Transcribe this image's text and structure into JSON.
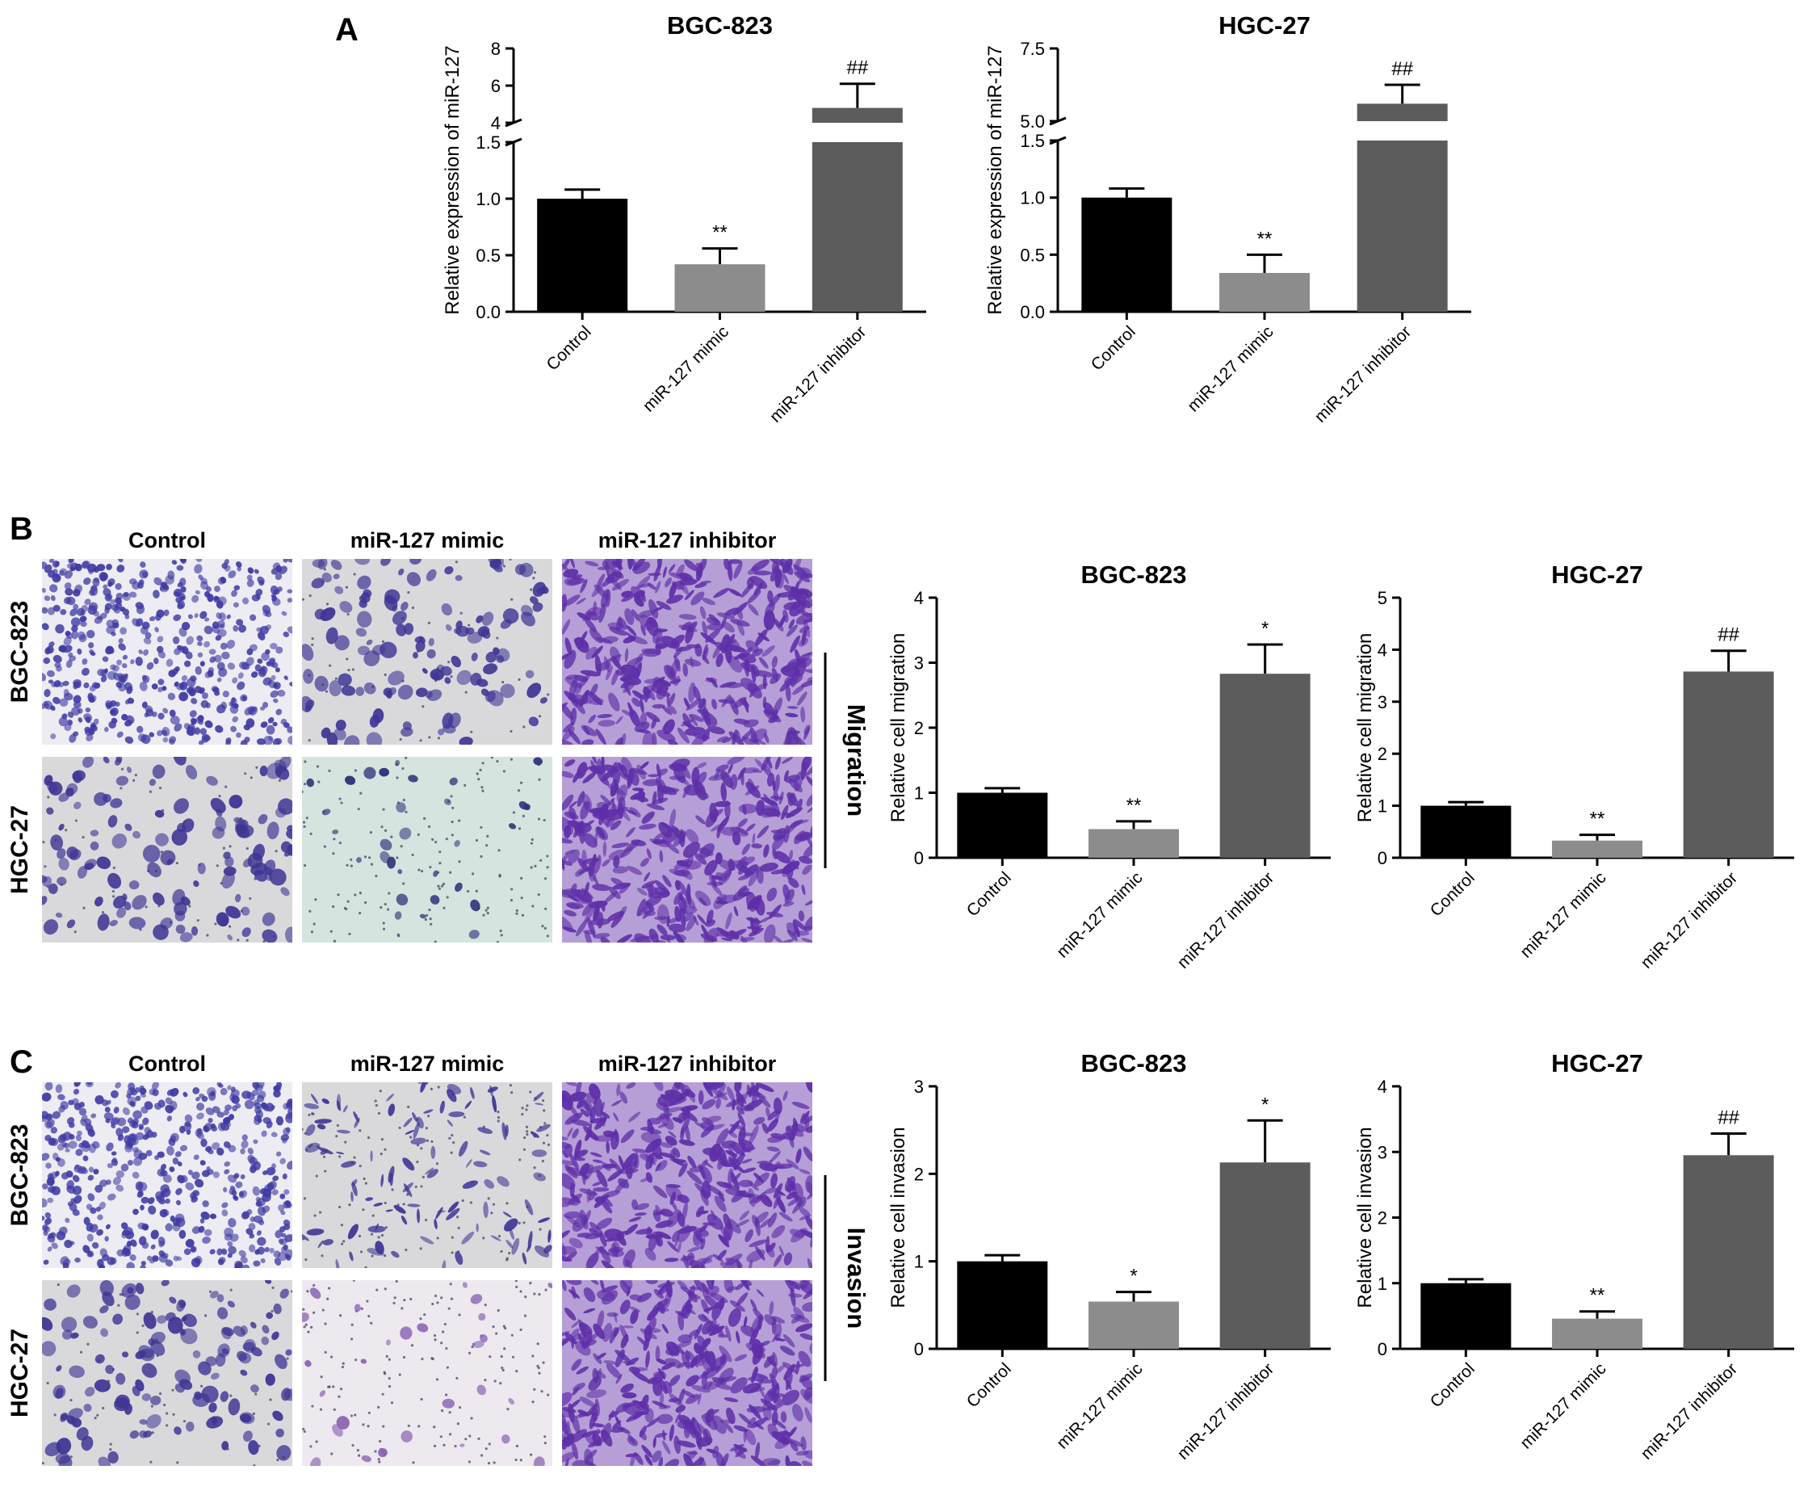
{
  "panels": [
    "A",
    "B",
    "C"
  ],
  "micrographs": [
    {
      "panel": "B",
      "columns": [
        "Control",
        "miR-127 mimic",
        "miR-127 inhibitor"
      ],
      "rows": [
        "BGC-823",
        "HGC-27"
      ],
      "side_label": "Migration",
      "tiles": [
        {
          "style": "dense-small"
        },
        {
          "style": "sparse-clumps"
        },
        {
          "style": "dense-spindle"
        },
        {
          "style": "sparse-clumps"
        },
        {
          "style": "very-sparse-blue"
        },
        {
          "style": "dense-spindle"
        }
      ]
    },
    {
      "panel": "C",
      "columns": [
        "Control",
        "miR-127 mimic",
        "miR-127 inhibitor"
      ],
      "rows": [
        "BGC-823",
        "HGC-27"
      ],
      "side_label": "Invasion",
      "tiles": [
        {
          "style": "dense-small"
        },
        {
          "style": "sparse-spindle"
        },
        {
          "style": "dense-spindle"
        },
        {
          "style": "sparse-clumps"
        },
        {
          "style": "very-sparse-pink"
        },
        {
          "style": "dense-spindle"
        }
      ]
    }
  ],
  "colors": {
    "control": "#000000",
    "mimic": "#8c8c8c",
    "inhibitor": "#5c5c5c",
    "dense_small_bg": "#ececf2",
    "dense_small_cell": "#3f3aa3",
    "sparse_bg": "#d9d9dc",
    "sparse_cell": "#3e3594",
    "spindle_bg": "#b69fd6",
    "spindle_cell": "#5e2fa8",
    "blue_bg": "#d6e4df",
    "pink_bg": "#ede9ef"
  },
  "chart_data": [
    {
      "type": "bar",
      "panel": "A",
      "title": "BGC-823",
      "ylabel": "Relative expression of miR-127",
      "categories": [
        "Control",
        "miR-127 mimic",
        "miR-127 inhibitor"
      ],
      "values": [
        1.0,
        0.42,
        4.8
      ],
      "errors": [
        0.08,
        0.14,
        1.3
      ],
      "annotations": [
        "",
        "**",
        "##"
      ],
      "broken_axis": true,
      "lower_ylim": [
        0,
        1.5
      ],
      "lower_ticks": [
        "0.0",
        "0.5",
        "1.0",
        "1.5"
      ],
      "upper_ylim": [
        4,
        8
      ],
      "upper_ticks": [
        "4",
        "6",
        "8"
      ]
    },
    {
      "type": "bar",
      "panel": "A",
      "title": "HGC-27",
      "ylabel": "Relative expression of miR-127",
      "categories": [
        "Control",
        "miR-127 mimic",
        "miR-127 inhibitor"
      ],
      "values": [
        1.0,
        0.34,
        5.6
      ],
      "errors": [
        0.08,
        0.16,
        0.65
      ],
      "annotations": [
        "",
        "**",
        "##"
      ],
      "broken_axis": true,
      "lower_ylim": [
        0,
        1.5
      ],
      "lower_ticks": [
        "0.0",
        "0.5",
        "1.0",
        "1.5"
      ],
      "upper_ylim": [
        5.0,
        7.5
      ],
      "upper_ticks": [
        "5.0",
        "7.5"
      ]
    },
    {
      "type": "bar",
      "panel": "B",
      "title": "BGC-823",
      "ylabel": "Relative cell migration",
      "categories": [
        "Control",
        "miR-127 mimic",
        "miR-127 inhibitor"
      ],
      "values": [
        1.0,
        0.44,
        2.83
      ],
      "errors": [
        0.07,
        0.12,
        0.45
      ],
      "annotations": [
        "",
        "**",
        "*"
      ],
      "ylim": [
        0,
        4
      ],
      "ticks": [
        "0",
        "1",
        "2",
        "3",
        "4"
      ]
    },
    {
      "type": "bar",
      "panel": "B",
      "title": "HGC-27",
      "ylabel": "Relative cell migration",
      "categories": [
        "Control",
        "miR-127 mimic",
        "miR-127 inhibitor"
      ],
      "values": [
        1.0,
        0.33,
        3.58
      ],
      "errors": [
        0.07,
        0.11,
        0.4
      ],
      "annotations": [
        "",
        "**",
        "##"
      ],
      "ylim": [
        0,
        5
      ],
      "ticks": [
        "0",
        "1",
        "2",
        "3",
        "4",
        "5"
      ]
    },
    {
      "type": "bar",
      "panel": "C",
      "title": "BGC-823",
      "ylabel": "Relative cell invasion",
      "categories": [
        "Control",
        "miR-127 mimic",
        "miR-127 inhibitor"
      ],
      "values": [
        1.0,
        0.54,
        2.13
      ],
      "errors": [
        0.07,
        0.11,
        0.48
      ],
      "annotations": [
        "",
        "*",
        "*"
      ],
      "ylim": [
        0,
        3
      ],
      "ticks": [
        "0",
        "1",
        "2",
        "3"
      ]
    },
    {
      "type": "bar",
      "panel": "C",
      "title": "HGC-27",
      "ylabel": "Relative cell invasion",
      "categories": [
        "Control",
        "miR-127 mimic",
        "miR-127 inhibitor"
      ],
      "values": [
        1.0,
        0.46,
        2.95
      ],
      "errors": [
        0.06,
        0.11,
        0.33
      ],
      "annotations": [
        "",
        "**",
        "##"
      ],
      "ylim": [
        0,
        4
      ],
      "ticks": [
        "0",
        "1",
        "2",
        "3",
        "4"
      ]
    }
  ]
}
